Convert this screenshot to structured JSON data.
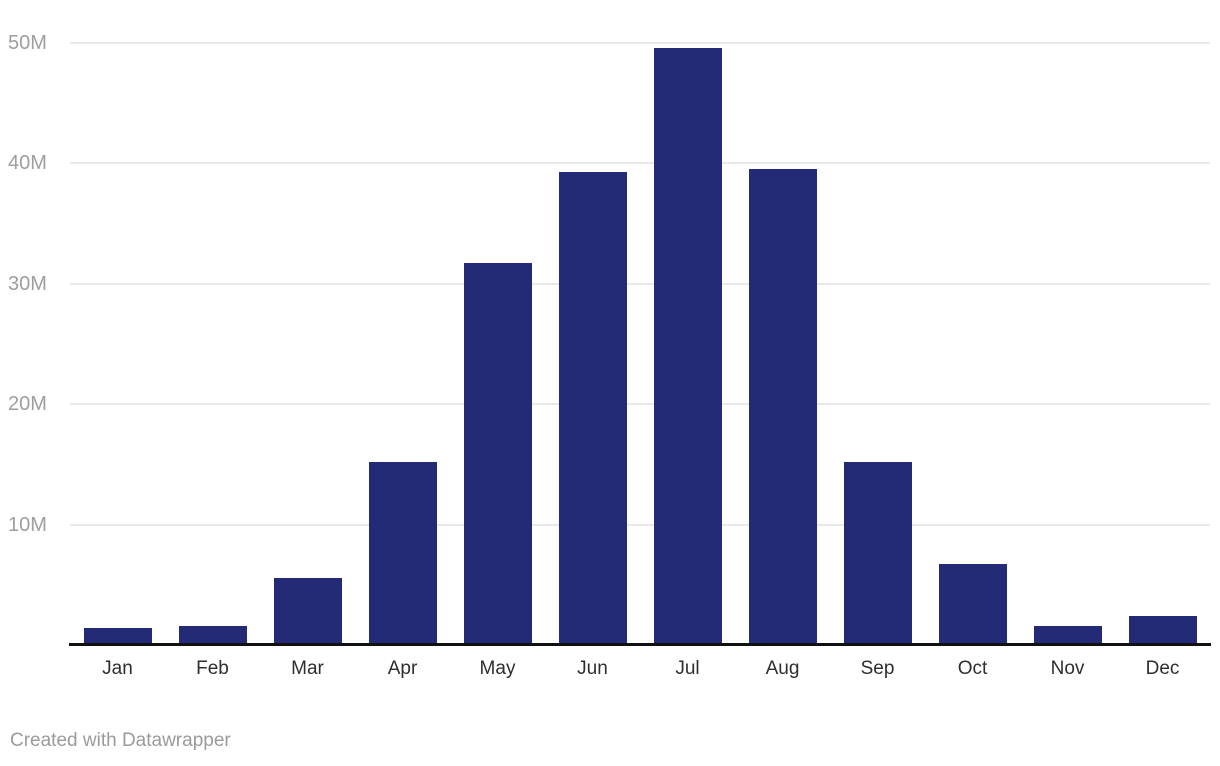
{
  "chart_data": {
    "type": "bar",
    "categories": [
      "Jan",
      "Feb",
      "Mar",
      "Apr",
      "May",
      "Jun",
      "Jul",
      "Aug",
      "Sep",
      "Oct",
      "Nov",
      "Dec"
    ],
    "values": [
      1.4,
      1.6,
      5.6,
      15.2,
      31.7,
      39.3,
      49.6,
      39.5,
      15.2,
      6.7,
      1.6,
      2.4
    ],
    "unit": "M",
    "title": "",
    "xlabel": "",
    "ylabel": "",
    "ylim": [
      0,
      50
    ],
    "yticks": [
      {
        "value": 10,
        "label": "10M"
      },
      {
        "value": 20,
        "label": "20M"
      },
      {
        "value": 30,
        "label": "30M"
      },
      {
        "value": 40,
        "label": "40M"
      },
      {
        "value": 50,
        "label": "50M"
      }
    ],
    "grid": true,
    "legend": false
  },
  "footer": {
    "credit": "Created with Datawrapper"
  },
  "colors": {
    "bar": "#242b76",
    "grid": "#e9e9e9",
    "axis": "#111111",
    "tick_label": "#9e9e9e",
    "category_label": "#2e2e2e",
    "credit": "#9b9b9b",
    "background": "#ffffff"
  }
}
